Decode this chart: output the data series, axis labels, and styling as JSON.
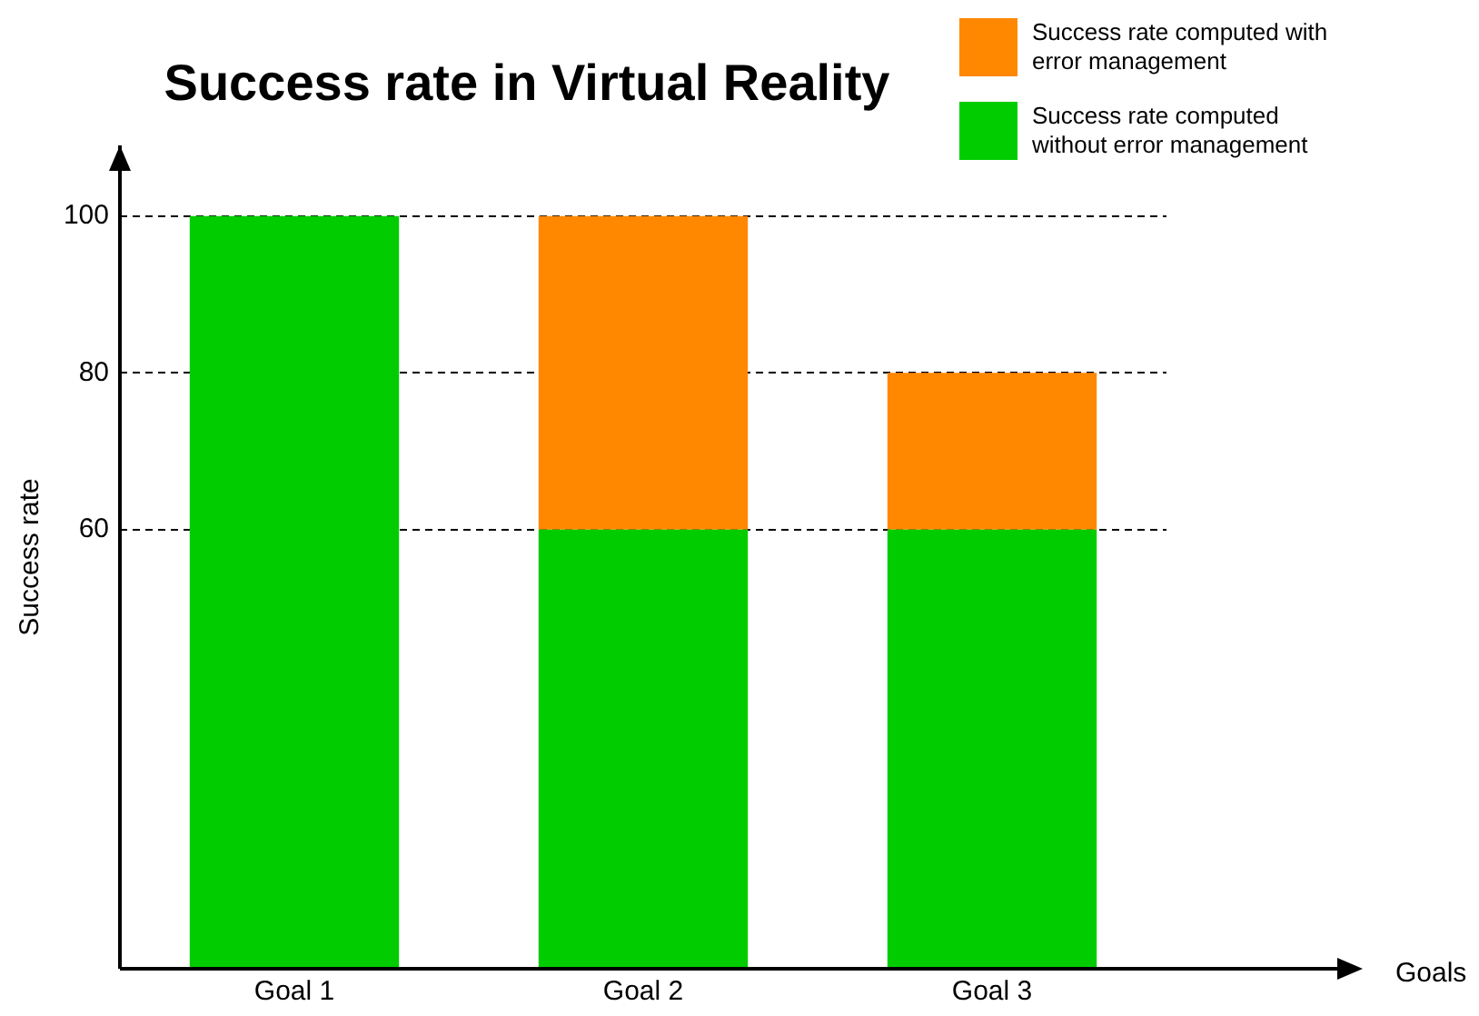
{
  "chart_data": {
    "type": "bar",
    "title": "Success rate in Virtual Reality",
    "annotations": [
      "Goals"
    ],
    "ylabel": "Success rate",
    "categories": [
      "Goal 1",
      "Goal 2",
      "Goal 3"
    ],
    "stacked": true,
    "series": [
      {
        "name": "Success rate computed without error management",
        "color": "#00cc00",
        "values": [
          100,
          60,
          60
        ]
      },
      {
        "name": "Success rate computed with error management",
        "color": "#ff8800",
        "values": [
          null,
          40,
          20
        ]
      }
    ],
    "ylim": [
      4,
      109
    ],
    "yticks": [
      60,
      80,
      100
    ],
    "grid": "y",
    "legend": "top right"
  }
}
